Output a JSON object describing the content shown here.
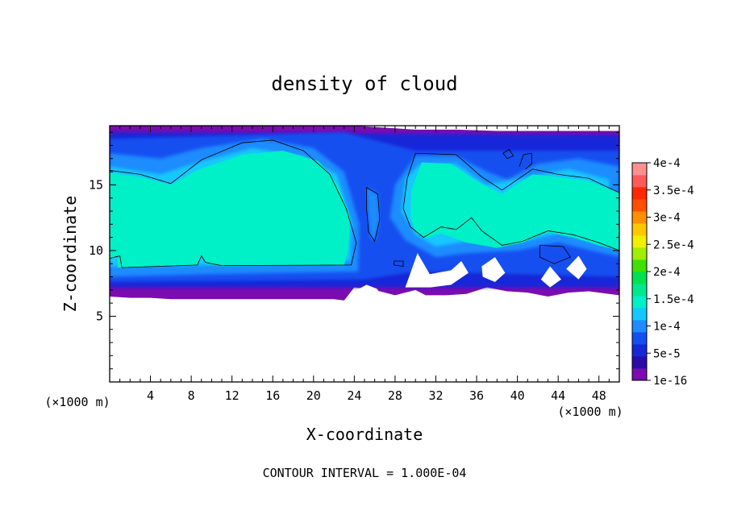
{
  "chart_data": {
    "type": "heatmap",
    "title": "density of cloud",
    "xlabel": "X-coordinate",
    "ylabel": "Z-coordinate",
    "x_unit_label": "(×1000 m)",
    "z_unit_label": "(×1000 m)",
    "xlim": [
      0,
      50
    ],
    "ylim": [
      0,
      19.5
    ],
    "x_ticks": [
      4,
      8,
      12,
      16,
      20,
      24,
      28,
      32,
      36,
      40,
      44,
      48
    ],
    "x_minor_step": 1,
    "y_ticks": [
      5,
      10,
      15
    ],
    "y_minor_step": 1,
    "footer": "CONTOUR INTERVAL = 1.000E-04",
    "contour_interval": 0.0001,
    "colorbar": {
      "range": [
        1e-16,
        0.0004
      ],
      "tick_values": [
        1e-16,
        5e-05,
        0.0001,
        0.00015,
        0.0002,
        0.00025,
        0.0003,
        0.00035,
        0.0004
      ],
      "tick_labels": [
        "1e-16",
        "5e-5",
        "1e-4",
        "1.5e-4",
        "2e-4",
        "2.5e-4",
        "3e-4",
        "3.5e-4",
        "4e-4"
      ],
      "colors": [
        "#7a0cb0",
        "#2a0ca8",
        "#1428d8",
        "#1450f0",
        "#1e8cff",
        "#14c8ff",
        "#00f0c8",
        "#00e88c",
        "#00e050",
        "#40e000",
        "#a0ee00",
        "#f0f000",
        "#ffc800",
        "#ff9000",
        "#ff5000",
        "#ff2800",
        "#ff5a5a",
        "#ff9090"
      ]
    },
    "regions": {
      "cloud_base_x": [
        0,
        2,
        4,
        6,
        8,
        10,
        12,
        14,
        16,
        18,
        20,
        22,
        23,
        24,
        26,
        28,
        29,
        30,
        31,
        33,
        35,
        37,
        39,
        41,
        43,
        45,
        47,
        50
      ],
      "cloud_base_z": [
        6.5,
        6.4,
        6.4,
        6.3,
        6.3,
        6.3,
        6.3,
        6.3,
        6.3,
        6.3,
        6.3,
        6.3,
        6.2,
        7.2,
        7.0,
        6.6,
        6.8,
        7.0,
        6.6,
        6.6,
        6.7,
        7.2,
        6.9,
        6.8,
        6.5,
        6.8,
        6.9,
        6.6
      ],
      "cloud_top_x": [
        0,
        4,
        8,
        12,
        16,
        20,
        24,
        28,
        30,
        34,
        38,
        42,
        46,
        50
      ],
      "cloud_top_z": [
        19.5,
        19.5,
        19.5,
        19.6,
        19.6,
        19.6,
        19.5,
        19.3,
        19.2,
        19.2,
        19.1,
        19.1,
        19.1,
        19.1
      ]
    }
  }
}
